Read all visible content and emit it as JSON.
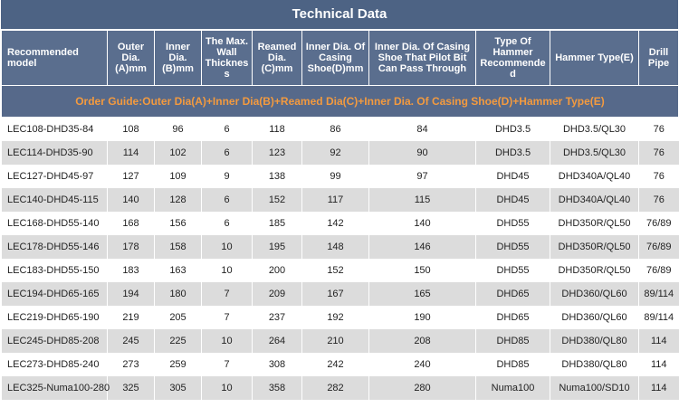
{
  "table": {
    "title": "Technical Data",
    "headers": [
      "Recommended model",
      "Outer Dia.(A)mm",
      "Inner Dia.(B)mm",
      "The Max. Wall Thickness",
      "Reamed Dia.(C)mm",
      "Inner Dia. Of Casing Shoe(D)mm",
      "Inner Dia. Of Casing Shoe That Pilot Bit Can Pass Through",
      "Type Of Hammer Recommended",
      "Hammer Type(E)",
      "Drill Pipe"
    ],
    "guide": "Order Guide:Outer Dia(A)+Inner Dia(B)+Reamed Dia(C)+Inner Dia. Of Casing Shoe(D)+Hammer Type(E)",
    "rows": [
      [
        "LEC108-DHD35-84",
        108,
        96,
        6,
        118,
        86,
        84,
        "DHD3.5",
        "DHD3.5/QL30",
        76
      ],
      [
        "LEC114-DHD35-90",
        114,
        102,
        6,
        123,
        92,
        90,
        "DHD3.5",
        "DHD3.5/QL30",
        76
      ],
      [
        "LEC127-DHD45-97",
        127,
        109,
        9,
        138,
        99,
        97,
        "DHD45",
        "DHD340A/QL40",
        76
      ],
      [
        "LEC140-DHD45-115",
        140,
        128,
        6,
        152,
        117,
        115,
        "DHD45",
        "DHD340A/QL40",
        76
      ],
      [
        "LEC168-DHD55-140",
        168,
        156,
        6,
        185,
        142,
        140,
        "DHD55",
        "DHD350R/QL50",
        "76/89"
      ],
      [
        "LEC178-DHD55-146",
        178,
        158,
        10,
        195,
        148,
        146,
        "DHD55",
        "DHD350R/QL50",
        "76/89"
      ],
      [
        "LEC183-DHD55-150",
        183,
        163,
        10,
        200,
        152,
        150,
        "DHD55",
        "DHD350R/QL50",
        "76/89"
      ],
      [
        "LEC194-DHD65-165",
        194,
        180,
        7,
        209,
        167,
        165,
        "DHD65",
        "DHD360/QL60",
        "89/114"
      ],
      [
        "LEC219-DHD65-190",
        219,
        205,
        7,
        237,
        192,
        190,
        "DHD65",
        "DHD360/QL60",
        "89/114"
      ],
      [
        "LEC245-DHD85-208",
        245,
        225,
        10,
        264,
        210,
        208,
        "DHD85",
        "DHD380/QL80",
        114
      ],
      [
        "LEC273-DHD85-240",
        273,
        259,
        7,
        308,
        242,
        240,
        "DHD85",
        "DHD380/QL80",
        114
      ],
      [
        "LEC325-Numa100-280",
        325,
        305,
        10,
        358,
        282,
        280,
        "Numa100",
        "Numa100/SD10",
        114
      ]
    ]
  }
}
